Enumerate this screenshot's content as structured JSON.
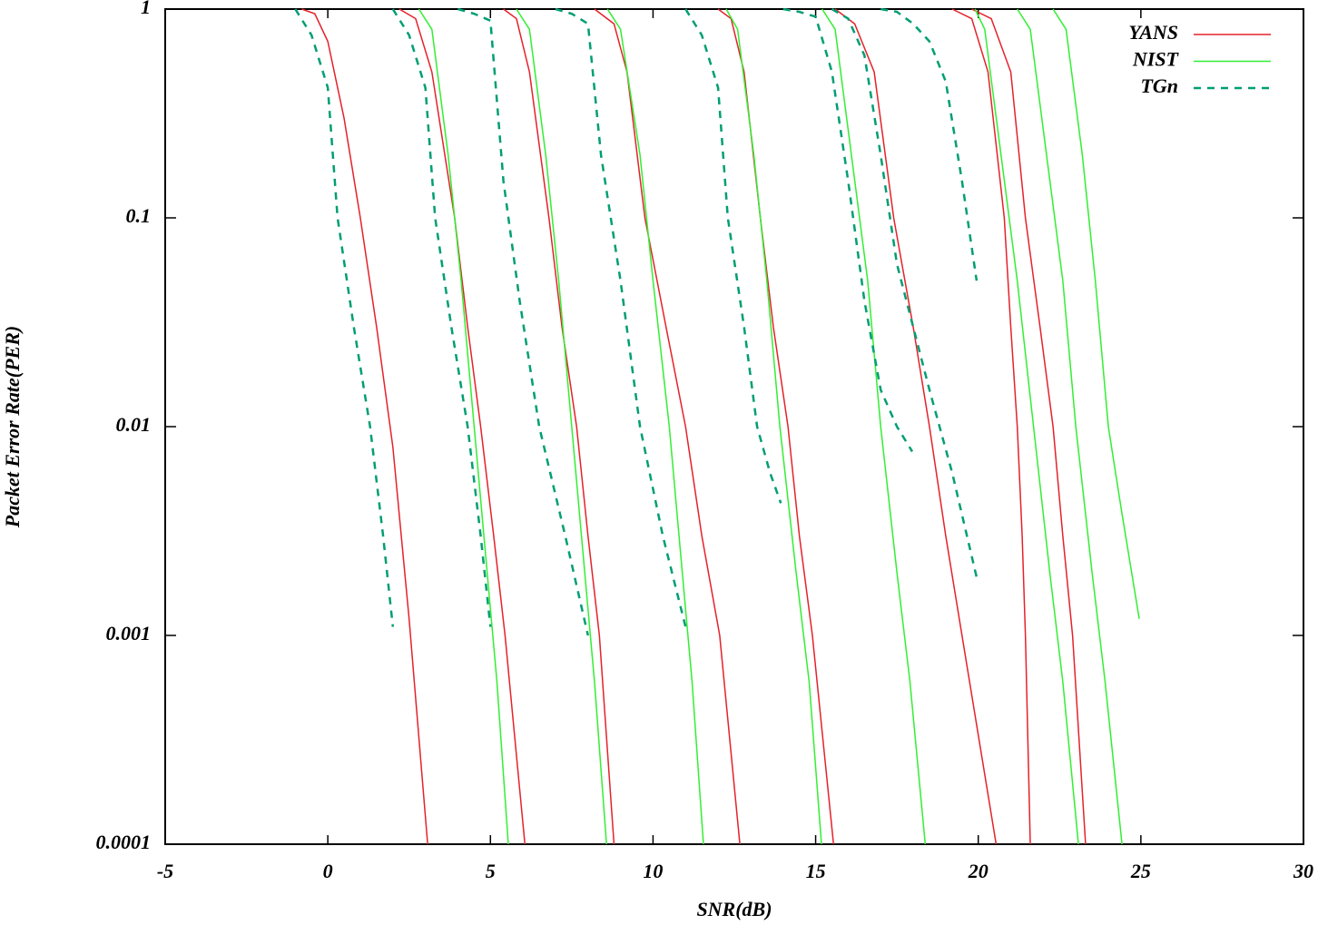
{
  "chart_data": {
    "type": "line",
    "x_label": "SNR(dB)",
    "y_label": "Packet Error Rate(PER)",
    "log_y": true,
    "legend": "top-right",
    "xlim": [
      -5,
      30
    ],
    "xticks": [
      -5,
      0,
      5,
      10,
      15,
      20,
      25,
      30
    ],
    "ylim": [
      0.0001,
      1
    ],
    "yticks": [
      0.0001,
      0.001,
      0.01,
      0.1,
      1
    ],
    "series": [
      {
        "name": "YANS",
        "color": "#e4222a",
        "dashed": false,
        "curves": [
          {
            "x": [
              -0.8,
              -0.4,
              0,
              0.5,
              1,
              1.5,
              2,
              2.5,
              3.07
            ],
            "values": [
              1,
              0.95,
              0.7,
              0.3,
              0.1,
              0.03,
              0.008,
              0.0012,
              0.0001
            ]
          },
          {
            "x": [
              2.2,
              2.7,
              3.2,
              3.9,
              4.3,
              4.7,
              5.1,
              5.45,
              6.06
            ],
            "values": [
              1,
              0.9,
              0.5,
              0.1,
              0.03,
              0.01,
              0.003,
              0.001,
              0.0001
            ]
          },
          {
            "x": [
              5.4,
              5.8,
              6.2,
              6.8,
              7.2,
              7.65,
              8.0,
              8.35,
              8.8
            ],
            "values": [
              1,
              0.9,
              0.5,
              0.1,
              0.03,
              0.01,
              0.003,
              0.001,
              0.0001
            ]
          },
          {
            "x": [
              8.2,
              8.8,
              9.2,
              9.75,
              10.4,
              11,
              11.5,
              12.05,
              12.67
            ],
            "values": [
              1,
              0.85,
              0.5,
              0.1,
              0.03,
              0.01,
              0.003,
              0.001,
              0.0001
            ]
          },
          {
            "x": [
              12.0,
              12.4,
              12.8,
              13.3,
              13.7,
              14.15,
              14.5,
              14.9,
              15.55
            ],
            "values": [
              1,
              0.9,
              0.5,
              0.1,
              0.03,
              0.01,
              0.003,
              0.001,
              0.0001
            ]
          },
          {
            "x": [
              15.6,
              16.2,
              16.8,
              17.4,
              18,
              18.5,
              19,
              19.5,
              20.55
            ],
            "values": [
              1,
              0.85,
              0.5,
              0.1,
              0.03,
              0.01,
              0.003,
              0.001,
              0.0001
            ]
          },
          {
            "x": [
              19.2,
              19.8,
              20.3,
              20.8,
              21.0,
              21.2,
              21.35,
              21.45,
              21.6
            ],
            "values": [
              1,
              0.9,
              0.5,
              0.1,
              0.03,
              0.01,
              0.003,
              0.001,
              0.0001
            ]
          },
          {
            "x": [
              19.8,
              20.4,
              21.0,
              21.45,
              21.9,
              22.3,
              22.6,
              22.9,
              23.3
            ],
            "values": [
              1,
              0.9,
              0.5,
              0.1,
              0.03,
              0.01,
              0.003,
              0.001,
              0.0001
            ]
          }
        ]
      },
      {
        "name": "NIST",
        "color": "#33ee33",
        "dashed": false,
        "curves": [
          {
            "x": [
              2.8,
              3.2,
              3.7,
              4.1,
              4.5,
              4.9,
              5.2,
              5.55
            ],
            "values": [
              1,
              0.8,
              0.2,
              0.05,
              0.01,
              0.002,
              0.0006,
              0.0001
            ]
          },
          {
            "x": [
              5.8,
              6.2,
              6.7,
              7.1,
              7.5,
              7.9,
              8.2,
              8.57
            ],
            "values": [
              1,
              0.8,
              0.2,
              0.05,
              0.01,
              0.002,
              0.0006,
              0.0001
            ]
          },
          {
            "x": [
              8.6,
              9.0,
              9.6,
              10.0,
              10.5,
              10.9,
              11.2,
              11.55
            ],
            "values": [
              1,
              0.8,
              0.2,
              0.05,
              0.01,
              0.002,
              0.0006,
              0.0001
            ]
          },
          {
            "x": [
              12.25,
              12.6,
              13.1,
              13.5,
              13.9,
              14.4,
              14.8,
              15.18
            ],
            "values": [
              1,
              0.8,
              0.2,
              0.05,
              0.01,
              0.002,
              0.0006,
              0.0001
            ]
          },
          {
            "x": [
              15.2,
              15.6,
              16.1,
              16.6,
              17.0,
              17.5,
              17.9,
              18.37
            ],
            "values": [
              1,
              0.8,
              0.2,
              0.05,
              0.01,
              0.002,
              0.0006,
              0.0001
            ]
          },
          {
            "x": [
              19.9,
              20.2,
              20.7,
              21.2,
              21.7,
              22.2,
              22.6,
              23.08
            ],
            "values": [
              1,
              0.8,
              0.2,
              0.05,
              0.01,
              0.002,
              0.0006,
              0.0001
            ]
          },
          {
            "x": [
              21.2,
              21.6,
              22.1,
              22.6,
              23.0,
              23.5,
              23.9,
              24.42
            ],
            "values": [
              1,
              0.8,
              0.2,
              0.05,
              0.01,
              0.002,
              0.0006,
              0.0001
            ]
          },
          {
            "x": [
              22.3,
              22.7,
              23.2,
              23.6,
              24.0,
              24.4,
              24.95
            ],
            "values": [
              1,
              0.8,
              0.2,
              0.05,
              0.01,
              0.004,
              0.0012
            ]
          }
        ]
      },
      {
        "name": "TGn",
        "color": "#009e73",
        "dashed": true,
        "curves": [
          {
            "x": [
              -1,
              -0.5,
              0,
              0.3,
              0.8,
              1.3,
              1.7,
              2
            ],
            "values": [
              1,
              0.75,
              0.42,
              0.1,
              0.03,
              0.01,
              0.003,
              0.0011
            ]
          },
          {
            "x": [
              2,
              2.5,
              3,
              3.3,
              3.8,
              4.3,
              4.7,
              5
            ],
            "values": [
              1,
              0.75,
              0.42,
              0.1,
              0.03,
              0.01,
              0.003,
              0.0011
            ]
          },
          {
            "x": [
              4,
              4.5,
              5,
              5.4,
              5.9,
              6.5,
              7.3,
              8
            ],
            "values": [
              1,
              0.95,
              0.88,
              0.15,
              0.04,
              0.01,
              0.003,
              0.001
            ]
          },
          {
            "x": [
              7,
              7.5,
              8,
              8.4,
              9,
              9.6,
              10.3,
              11
            ],
            "values": [
              1,
              0.95,
              0.85,
              0.2,
              0.05,
              0.01,
              0.003,
              0.0011
            ]
          },
          {
            "x": [
              11,
              11.5,
              12,
              12.3,
              12.8,
              13.2,
              13.6,
              13.93
            ],
            "values": [
              1,
              0.75,
              0.42,
              0.1,
              0.03,
              0.01,
              0.006,
              0.0043
            ]
          },
          {
            "x": [
              14,
              14.5,
              15,
              15.5,
              16,
              16.5,
              17,
              17.5,
              17.97
            ],
            "values": [
              1,
              0.97,
              0.92,
              0.5,
              0.15,
              0.04,
              0.015,
              0.01,
              0.0076
            ]
          },
          {
            "x": [
              17,
              17.5,
              18,
              18.5,
              19,
              19.5,
              19.95
            ],
            "values": [
              1,
              0.97,
              0.85,
              0.7,
              0.45,
              0.15,
              0.05
            ]
          },
          {
            "x": [
              15.5,
              16,
              16.5,
              17,
              17.5,
              18.5,
              19.2,
              19.95
            ],
            "values": [
              1,
              0.9,
              0.6,
              0.2,
              0.06,
              0.015,
              0.006,
              0.0019
            ]
          }
        ]
      }
    ]
  }
}
